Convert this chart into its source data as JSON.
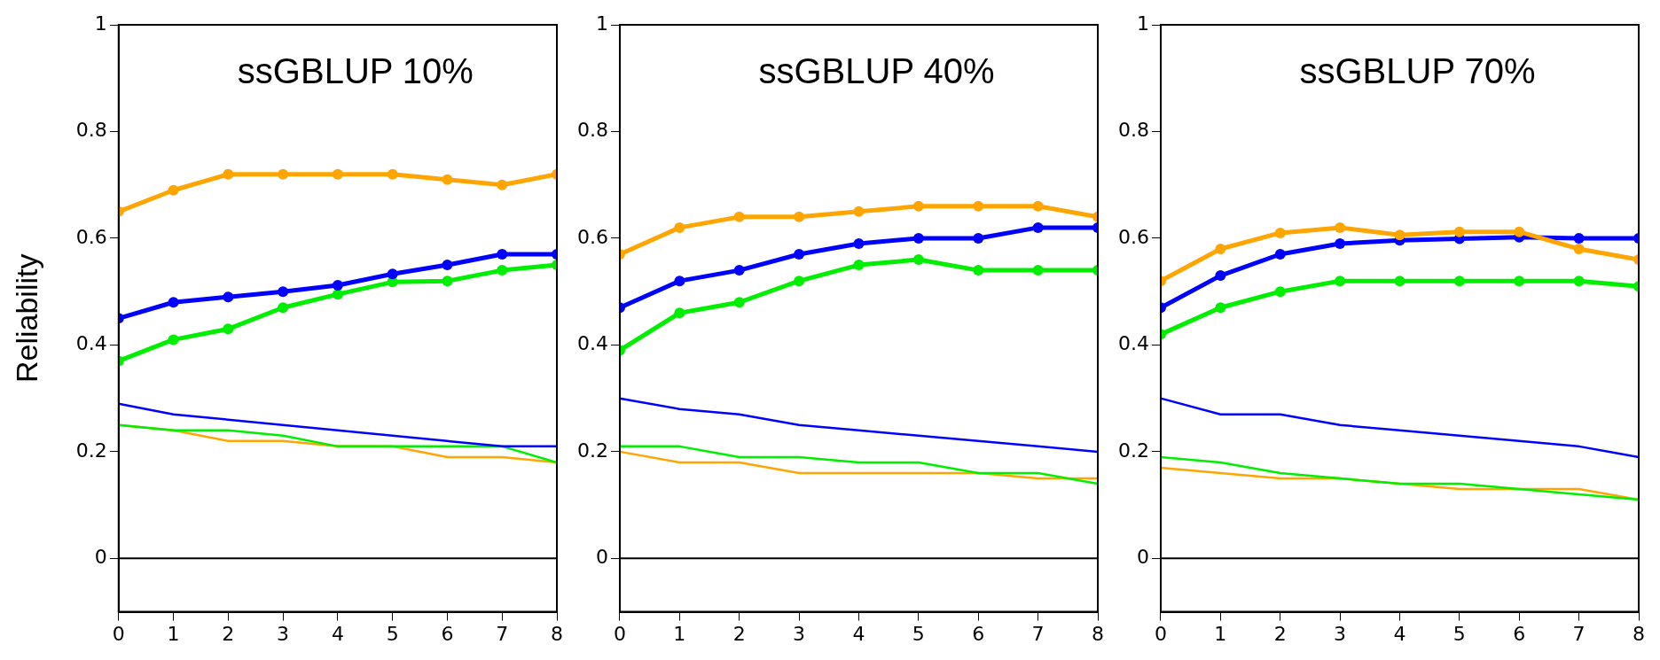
{
  "chart_data": [
    {
      "type": "line",
      "title": "ssGBLUP 10%",
      "ylabel": "Reliability",
      "x": [
        0,
        1,
        2,
        3,
        4,
        5,
        6,
        7,
        8
      ],
      "xlim": [
        0,
        8
      ],
      "xticks": [
        0,
        1,
        2,
        3,
        4,
        5,
        6,
        7,
        8
      ],
      "ylim": [
        -0.1,
        1
      ],
      "yticks": [
        0,
        0.2,
        0.4,
        0.6,
        0.8,
        1
      ],
      "grid": false,
      "legend": false,
      "ref_lines": [
        {
          "axis": "y",
          "value": 0,
          "color": "#000000"
        }
      ],
      "series": [
        {
          "color": "#ffa500",
          "marker": "circle",
          "values": [
            0.65,
            0.69,
            0.72,
            0.72,
            0.72,
            0.72,
            0.71,
            0.7,
            0.72
          ]
        },
        {
          "color": "#0000ff",
          "marker": "circle",
          "values": [
            0.45,
            0.48,
            0.49,
            0.5,
            0.512,
            0.533,
            0.55,
            0.57,
            0.57
          ]
        },
        {
          "color": "#00ee00",
          "marker": "circle",
          "values": [
            0.37,
            0.41,
            0.43,
            0.47,
            0.495,
            0.518,
            0.52,
            0.54,
            0.55
          ]
        },
        {
          "color": "#0000ff",
          "marker": "none",
          "values": [
            0.29,
            0.27,
            0.26,
            0.25,
            0.24,
            0.23,
            0.22,
            0.21,
            0.21
          ]
        },
        {
          "color": "#00ee00",
          "marker": "none",
          "values": [
            0.25,
            0.24,
            0.24,
            0.23,
            0.21,
            0.21,
            0.21,
            0.21,
            0.18
          ]
        },
        {
          "color": "#ffa500",
          "marker": "none",
          "values": [
            0.25,
            0.24,
            0.22,
            0.22,
            0.21,
            0.21,
            0.19,
            0.19,
            0.18
          ]
        }
      ]
    },
    {
      "type": "line",
      "title": "ssGBLUP 40%",
      "x": [
        0,
        1,
        2,
        3,
        4,
        5,
        6,
        7,
        8
      ],
      "xlim": [
        0,
        8
      ],
      "xticks": [
        0,
        1,
        2,
        3,
        4,
        5,
        6,
        7,
        8
      ],
      "ylim": [
        -0.1,
        1
      ],
      "yticks": [
        0,
        0.2,
        0.4,
        0.6,
        0.8,
        1
      ],
      "grid": false,
      "legend": false,
      "ref_lines": [
        {
          "axis": "y",
          "value": 0,
          "color": "#000000"
        }
      ],
      "series": [
        {
          "color": "#ffa500",
          "marker": "circle",
          "values": [
            0.57,
            0.62,
            0.64,
            0.64,
            0.65,
            0.66,
            0.66,
            0.66,
            0.64
          ]
        },
        {
          "color": "#0000ff",
          "marker": "circle",
          "values": [
            0.47,
            0.52,
            0.54,
            0.57,
            0.59,
            0.6,
            0.6,
            0.62,
            0.62
          ]
        },
        {
          "color": "#00ee00",
          "marker": "circle",
          "values": [
            0.39,
            0.46,
            0.48,
            0.52,
            0.55,
            0.56,
            0.54,
            0.54,
            0.54
          ]
        },
        {
          "color": "#0000ff",
          "marker": "none",
          "values": [
            0.3,
            0.28,
            0.27,
            0.25,
            0.24,
            0.23,
            0.22,
            0.21,
            0.2
          ]
        },
        {
          "color": "#00ee00",
          "marker": "none",
          "values": [
            0.21,
            0.21,
            0.19,
            0.19,
            0.18,
            0.18,
            0.16,
            0.16,
            0.14
          ]
        },
        {
          "color": "#ffa500",
          "marker": "none",
          "values": [
            0.2,
            0.18,
            0.18,
            0.16,
            0.16,
            0.16,
            0.16,
            0.15,
            0.15
          ]
        }
      ]
    },
    {
      "type": "line",
      "title": "ssGBLUP 70%",
      "x": [
        0,
        1,
        2,
        3,
        4,
        5,
        6,
        7,
        8
      ],
      "xlim": [
        0,
        8
      ],
      "xticks": [
        0,
        1,
        2,
        3,
        4,
        5,
        6,
        7,
        8
      ],
      "ylim": [
        -0.1,
        1
      ],
      "yticks": [
        0,
        0.2,
        0.4,
        0.6,
        0.8,
        1
      ],
      "grid": false,
      "legend": false,
      "ref_lines": [
        {
          "axis": "y",
          "value": 0,
          "color": "#000000"
        }
      ],
      "series": [
        {
          "color": "#ffa500",
          "marker": "circle",
          "values": [
            0.52,
            0.58,
            0.61,
            0.62,
            0.606,
            0.612,
            0.612,
            0.58,
            0.56
          ]
        },
        {
          "color": "#0000ff",
          "marker": "circle",
          "values": [
            0.47,
            0.53,
            0.57,
            0.59,
            0.596,
            0.599,
            0.602,
            0.6,
            0.6
          ]
        },
        {
          "color": "#00ee00",
          "marker": "circle",
          "values": [
            0.42,
            0.47,
            0.5,
            0.52,
            0.52,
            0.52,
            0.52,
            0.52,
            0.51
          ]
        },
        {
          "color": "#0000ff",
          "marker": "none",
          "values": [
            0.3,
            0.27,
            0.27,
            0.25,
            0.24,
            0.23,
            0.22,
            0.21,
            0.19
          ]
        },
        {
          "color": "#00ee00",
          "marker": "none",
          "values": [
            0.19,
            0.18,
            0.16,
            0.15,
            0.14,
            0.14,
            0.13,
            0.12,
            0.11
          ]
        },
        {
          "color": "#ffa500",
          "marker": "none",
          "values": [
            0.17,
            0.16,
            0.15,
            0.15,
            0.14,
            0.13,
            0.13,
            0.13,
            0.11
          ]
        }
      ]
    }
  ]
}
